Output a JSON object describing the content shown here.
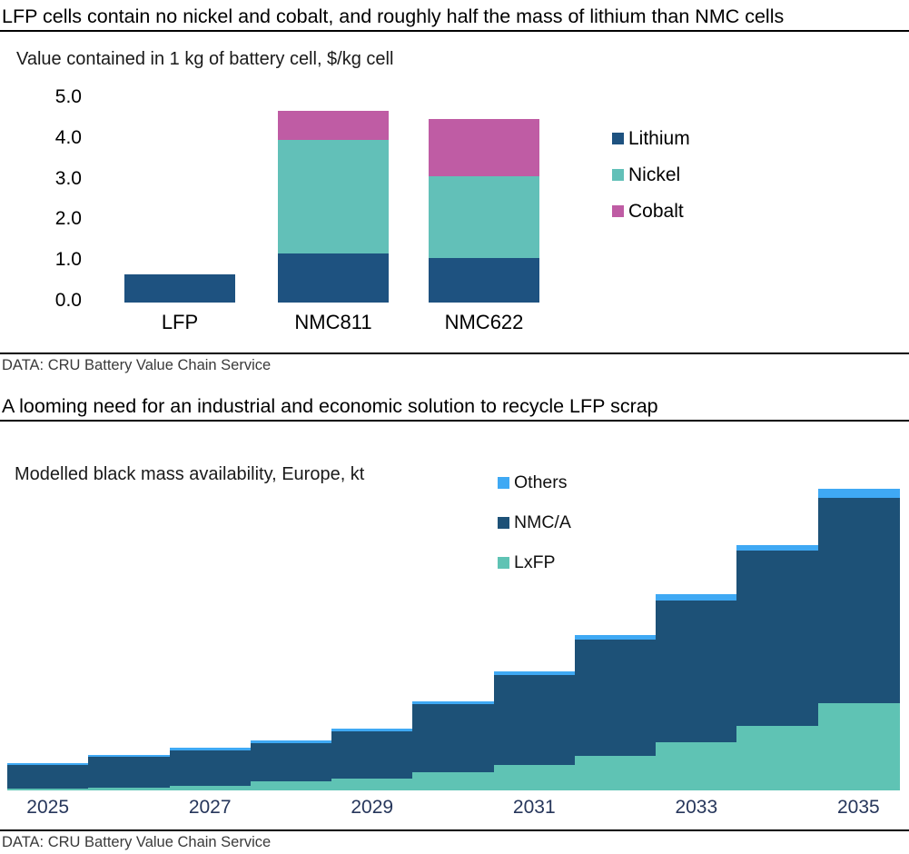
{
  "section1": {
    "title": "LFP cells contain no nickel and cobalt, and roughly half the mass of lithium than NMC cells",
    "subtitle": "Value contained in 1 kg of battery cell, $/kg cell",
    "source": "DATA: CRU Battery Value Chain Service"
  },
  "section2": {
    "title": "A looming need for an industrial and economic solution to recycle LFP scrap",
    "subtitle": "Modelled black mass availability, Europe, kt",
    "source": "DATA: CRU Battery Value Chain Service"
  },
  "colors": {
    "lithium_navy": "#1E5280",
    "nickel_teal": "#62C0B8",
    "cobalt_magenta": "#BF5CA4",
    "others_blue": "#3FA9F4",
    "nmca_navy": "#1D5177",
    "lxfp_teal": "#5FC3B4",
    "year_label": "#26365B",
    "rule_black": "#000000"
  },
  "chart_data": [
    {
      "type": "bar",
      "stacked": true,
      "title": "Value contained in 1 kg of battery cell, $/kg cell",
      "categories": [
        "LFP",
        "NMC811",
        "NMC622"
      ],
      "series": [
        {
          "name": "Lithium",
          "color": "#1E5280",
          "values": [
            0.7,
            1.2,
            1.1
          ]
        },
        {
          "name": "Nickel",
          "color": "#62C0B8",
          "values": [
            0,
            2.8,
            2.0
          ]
        },
        {
          "name": "Cobalt",
          "color": "#BF5CA4",
          "values": [
            0,
            0.7,
            1.4
          ]
        }
      ],
      "ylim": [
        0,
        5
      ],
      "yticks": [
        "0.0",
        "1.0",
        "2.0",
        "3.0",
        "4.0",
        "5.0"
      ],
      "grid": false,
      "y_axis_visible": true,
      "legend_position": "right",
      "legend_order": [
        "Lithium",
        "Nickel",
        "Cobalt"
      ]
    },
    {
      "type": "area",
      "subtype": "stacked-step",
      "title": "Modelled black mass availability, Europe, kt",
      "x": [
        2025,
        2026,
        2027,
        2028,
        2029,
        2030,
        2031,
        2032,
        2033,
        2034,
        2035
      ],
      "xtick_labels": [
        "2025",
        "2027",
        "2029",
        "2031",
        "2033",
        "2035"
      ],
      "series": [
        {
          "name": "LxFP",
          "color": "#5FC3B4",
          "values": [
            2,
            3,
            5,
            10,
            13,
            20,
            28,
            38,
            53,
            71,
            96
          ]
        },
        {
          "name": "NMC/A",
          "color": "#1D5177",
          "values": [
            26,
            34,
            39,
            42,
            52,
            75,
            99,
            128,
            156,
            193,
            226
          ]
        },
        {
          "name": "Others",
          "color": "#3FA9F4",
          "values": [
            2.5,
            2,
            3,
            3,
            3.5,
            3.5,
            4,
            5,
            7,
            6.5,
            10.5
          ]
        }
      ],
      "ylabel": "kt",
      "ylim": [
        0,
        340
      ],
      "grid": false,
      "y_axis_visible": false,
      "legend_position": "top-center",
      "legend_order": [
        "Others",
        "NMC/A",
        "LxFP"
      ]
    }
  ]
}
